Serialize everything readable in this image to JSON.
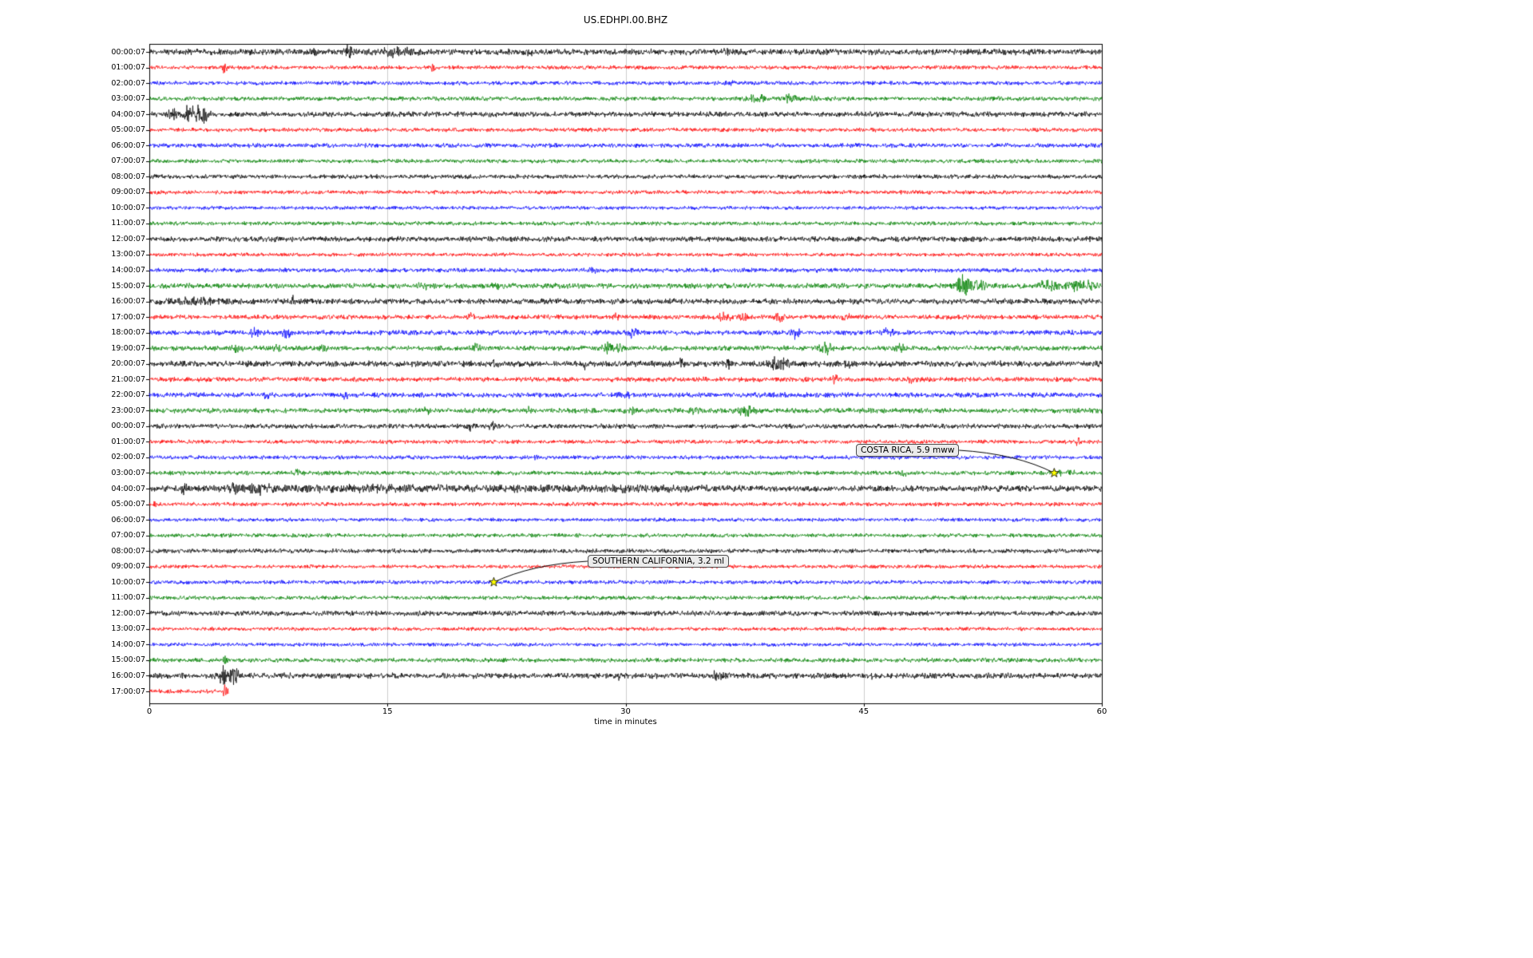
{
  "title": "US.EDHPI.00.BHZ",
  "chart_data": {
    "type": "line",
    "subtype": "seismogram-dayplot",
    "title": "US.EDHPI.00.BHZ",
    "xlabel": "time in minutes",
    "xlim": [
      0,
      60
    ],
    "x_ticks": [
      0,
      15,
      30,
      45,
      60
    ],
    "grid_x": [
      15,
      30,
      45
    ],
    "grid_color": "#cccccc",
    "background": "#ffffff",
    "trace_colors_cycle": [
      "#000000",
      "#ff0000",
      "#0000ff",
      "#008000"
    ],
    "rows": [
      {
        "label": "00:00:07",
        "namp": 1.8,
        "events": [
          {
            "t": 10.3,
            "a": 4,
            "w": 0.25
          },
          {
            "t": 12.6,
            "a": 3.5,
            "w": 0.3
          },
          {
            "t": 15.4,
            "a": 2.6,
            "w": 0.8
          },
          {
            "t": 16.6,
            "a": 2,
            "w": 0.4
          },
          {
            "t": 24,
            "a": 1.4,
            "w": 0.3
          },
          {
            "t": 36.5,
            "a": 1.4,
            "w": 0.3
          }
        ]
      },
      {
        "label": "01:00:07",
        "namp": 1.2,
        "events": [
          {
            "t": 4.7,
            "a": 3,
            "w": 0.18
          },
          {
            "t": 17.9,
            "a": 2.4,
            "w": 0.15
          }
        ]
      },
      {
        "label": "02:00:07",
        "namp": 1.2,
        "events": [
          {
            "t": 36.6,
            "a": 1.4,
            "w": 0.2
          }
        ]
      },
      {
        "label": "03:00:07",
        "namp": 1.3,
        "events": [
          {
            "t": 38.3,
            "a": 2.8,
            "w": 0.5
          },
          {
            "t": 40.3,
            "a": 2.4,
            "w": 0.4
          },
          {
            "t": 41.8,
            "a": 2.4,
            "w": 0.2
          }
        ]
      },
      {
        "label": "04:00:07",
        "namp": 1.6,
        "events": [
          {
            "t": 1.5,
            "a": 2.5,
            "w": 0.3
          },
          {
            "t": 2.6,
            "a": 5.5,
            "w": 0.5
          },
          {
            "t": 3.4,
            "a": 4.5,
            "w": 0.4
          }
        ]
      },
      {
        "label": "05:00:07",
        "namp": 1.2,
        "events": []
      },
      {
        "label": "06:00:07",
        "namp": 1.3,
        "events": []
      },
      {
        "label": "07:00:07",
        "namp": 1.2,
        "events": []
      },
      {
        "label": "08:00:07",
        "namp": 1.3,
        "events": []
      },
      {
        "label": "09:00:07",
        "namp": 1.2,
        "events": []
      },
      {
        "label": "10:00:07",
        "namp": 1.1,
        "events": []
      },
      {
        "label": "11:00:07",
        "namp": 1.2,
        "events": []
      },
      {
        "label": "12:00:07",
        "namp": 1.6,
        "events": []
      },
      {
        "label": "13:00:07",
        "namp": 1.1,
        "events": []
      },
      {
        "label": "14:00:07",
        "namp": 1.3,
        "events": [
          {
            "t": 28,
            "a": 1.8,
            "w": 0.2
          },
          {
            "t": 42,
            "a": 1.6,
            "w": 0.2
          }
        ]
      },
      {
        "label": "15:00:07",
        "namp": 1.6,
        "events": [
          {
            "t": 17.3,
            "a": 1.8,
            "w": 0.3
          },
          {
            "t": 22,
            "a": 1.4,
            "w": 0.3
          },
          {
            "t": 51.2,
            "a": 6.5,
            "w": 0.4
          },
          {
            "t": 52.1,
            "a": 3.5,
            "w": 0.5
          },
          {
            "t": 56.6,
            "a": 2.8,
            "w": 0.6
          },
          {
            "t": 58.1,
            "a": 2.8,
            "w": 0.5
          },
          {
            "t": 59.1,
            "a": 2.4,
            "w": 0.4
          }
        ]
      },
      {
        "label": "16:00:07",
        "namp": 1.7,
        "events": [
          {
            "t": 3,
            "a": 1.2,
            "w": 2
          },
          {
            "t": 9,
            "a": 3.2,
            "w": 0.15
          }
        ]
      },
      {
        "label": "17:00:07",
        "namp": 1.4,
        "events": [
          {
            "t": 20.2,
            "a": 2.4,
            "w": 0.2
          },
          {
            "t": 29.4,
            "a": 2.4,
            "w": 0.2
          },
          {
            "t": 36.2,
            "a": 2.8,
            "w": 0.4
          },
          {
            "t": 37.5,
            "a": 2.8,
            "w": 0.3
          },
          {
            "t": 39.7,
            "a": 3.2,
            "w": 0.3
          },
          {
            "t": 44,
            "a": 1.4,
            "w": 0.3
          }
        ]
      },
      {
        "label": "18:00:07",
        "namp": 1.5,
        "events": [
          {
            "t": 6.6,
            "a": 2.4,
            "w": 0.3
          },
          {
            "t": 8.6,
            "a": 2.4,
            "w": 0.3
          },
          {
            "t": 30.5,
            "a": 2.8,
            "w": 0.3
          },
          {
            "t": 40.7,
            "a": 3.2,
            "w": 0.25
          },
          {
            "t": 46.5,
            "a": 2.4,
            "w": 0.3
          }
        ]
      },
      {
        "label": "19:00:07",
        "namp": 1.5,
        "events": [
          {
            "t": 5.5,
            "a": 2.4,
            "w": 0.3
          },
          {
            "t": 8,
            "a": 1.9,
            "w": 0.3
          },
          {
            "t": 11,
            "a": 1.9,
            "w": 0.3
          },
          {
            "t": 20.6,
            "a": 2.4,
            "w": 0.3
          },
          {
            "t": 28.8,
            "a": 2.8,
            "w": 0.4
          },
          {
            "t": 29.6,
            "a": 2.4,
            "w": 0.3
          },
          {
            "t": 42.7,
            "a": 3.2,
            "w": 0.4
          },
          {
            "t": 47.3,
            "a": 2.4,
            "w": 0.3
          }
        ]
      },
      {
        "label": "20:00:07",
        "namp": 1.8,
        "events": [
          {
            "t": 21.8,
            "a": 2.4,
            "w": 0.2
          },
          {
            "t": 27.5,
            "a": 2.4,
            "w": 0.2
          },
          {
            "t": 33.5,
            "a": 2.4,
            "w": 0.2
          },
          {
            "t": 36.5,
            "a": 2.4,
            "w": 0.2
          },
          {
            "t": 39.3,
            "a": 3.8,
            "w": 0.4
          },
          {
            "t": 40.1,
            "a": 3.2,
            "w": 0.3
          },
          {
            "t": 44,
            "a": 1.9,
            "w": 0.2
          }
        ]
      },
      {
        "label": "21:00:07",
        "namp": 1.4,
        "events": [
          {
            "t": 35,
            "a": 1.4,
            "w": 0.3
          },
          {
            "t": 43.2,
            "a": 3.4,
            "w": 0.15
          },
          {
            "t": 48,
            "a": 1.9,
            "w": 0.3
          }
        ]
      },
      {
        "label": "22:00:07",
        "namp": 1.5,
        "events": [
          {
            "t": 7.4,
            "a": 2.4,
            "w": 0.25
          },
          {
            "t": 12.4,
            "a": 2.4,
            "w": 0.25
          },
          {
            "t": 30,
            "a": 1.4,
            "w": 0.3
          }
        ]
      },
      {
        "label": "23:00:07",
        "namp": 1.5,
        "events": [
          {
            "t": 17.5,
            "a": 2.4,
            "w": 0.2
          },
          {
            "t": 24,
            "a": 1.9,
            "w": 0.2
          },
          {
            "t": 30.4,
            "a": 1.9,
            "w": 0.3
          },
          {
            "t": 34.3,
            "a": 1.9,
            "w": 0.3
          },
          {
            "t": 37.6,
            "a": 2.8,
            "w": 0.5
          }
        ]
      },
      {
        "label": "00:00:07",
        "namp": 1.4,
        "events": [
          {
            "t": 20.2,
            "a": 2.4,
            "w": 0.3
          },
          {
            "t": 21.6,
            "a": 2.4,
            "w": 0.2
          }
        ]
      },
      {
        "label": "01:00:07",
        "namp": 1.2,
        "events": [
          {
            "t": 58.5,
            "a": 2.8,
            "w": 0.15
          }
        ]
      },
      {
        "label": "02:00:07",
        "namp": 1.2,
        "events": [
          {
            "t": 24.4,
            "a": 1.9,
            "w": 0.15
          }
        ]
      },
      {
        "label": "03:00:07",
        "namp": 1.3,
        "events": [
          {
            "t": 9.3,
            "a": 2.4,
            "w": 0.15
          },
          {
            "t": 47.5,
            "a": 1.4,
            "w": 0.3
          },
          {
            "t": 57.7,
            "a": 1.2,
            "w": 0.8
          }
        ]
      },
      {
        "label": "04:00:07",
        "namp": 1.8,
        "events": [
          {
            "t": 2.2,
            "a": 4.5,
            "w": 0.2
          },
          {
            "t": 5.5,
            "a": 2.8,
            "w": 0.8
          },
          {
            "t": 7,
            "a": 2.8,
            "w": 0.5
          },
          {
            "t": 15,
            "a": 1.2,
            "w": 8
          },
          {
            "t": 30,
            "a": 1,
            "w": 6
          }
        ]
      },
      {
        "label": "05:00:07",
        "namp": 1.2,
        "events": [
          {
            "t": 0.3,
            "a": 1.9,
            "w": 0.12
          }
        ]
      },
      {
        "label": "06:00:07",
        "namp": 1.1,
        "events": []
      },
      {
        "label": "07:00:07",
        "namp": 1.2,
        "events": []
      },
      {
        "label": "08:00:07",
        "namp": 1.3,
        "events": []
      },
      {
        "label": "09:00:07",
        "namp": 1.1,
        "events": []
      },
      {
        "label": "10:00:07",
        "namp": 1.2,
        "events": []
      },
      {
        "label": "11:00:07",
        "namp": 1.2,
        "events": []
      },
      {
        "label": "12:00:07",
        "namp": 1.5,
        "events": []
      },
      {
        "label": "13:00:07",
        "namp": 1.1,
        "events": []
      },
      {
        "label": "14:00:07",
        "namp": 1.1,
        "events": []
      },
      {
        "label": "15:00:07",
        "namp": 1.3,
        "events": [
          {
            "t": 4.8,
            "a": 4.2,
            "w": 0.12
          }
        ]
      },
      {
        "label": "16:00:07",
        "namp": 1.7,
        "events": [
          {
            "t": 4.7,
            "a": 5.5,
            "w": 0.4
          },
          {
            "t": 5.4,
            "a": 4.5,
            "w": 0.3
          },
          {
            "t": 8.7,
            "a": 2.4,
            "w": 0.15
          },
          {
            "t": 29.5,
            "a": 1.9,
            "w": 0.2
          },
          {
            "t": 35.7,
            "a": 2.4,
            "w": 0.3
          },
          {
            "t": 36.4,
            "a": 1.9,
            "w": 0.2
          },
          {
            "t": 45.5,
            "a": 1.9,
            "w": 0.15
          }
        ]
      },
      {
        "label": "17:00:07",
        "namp": 1.3,
        "tmax": 5.0,
        "events": [
          {
            "t": 4.8,
            "a": 3.8,
            "w": 0.15
          }
        ]
      }
    ],
    "annotations": [
      {
        "text": "COSTA RICA, 5.9 mww",
        "row_index": 27,
        "t_minutes": 57.0,
        "marker": "star",
        "marker_color": "#ffff00"
      },
      {
        "text": "SOUTHERN CALIFORNIA, 3.2 ml",
        "row_index": 34,
        "t_minutes": 21.7,
        "marker": "star",
        "marker_color": "#ffff00"
      }
    ]
  }
}
